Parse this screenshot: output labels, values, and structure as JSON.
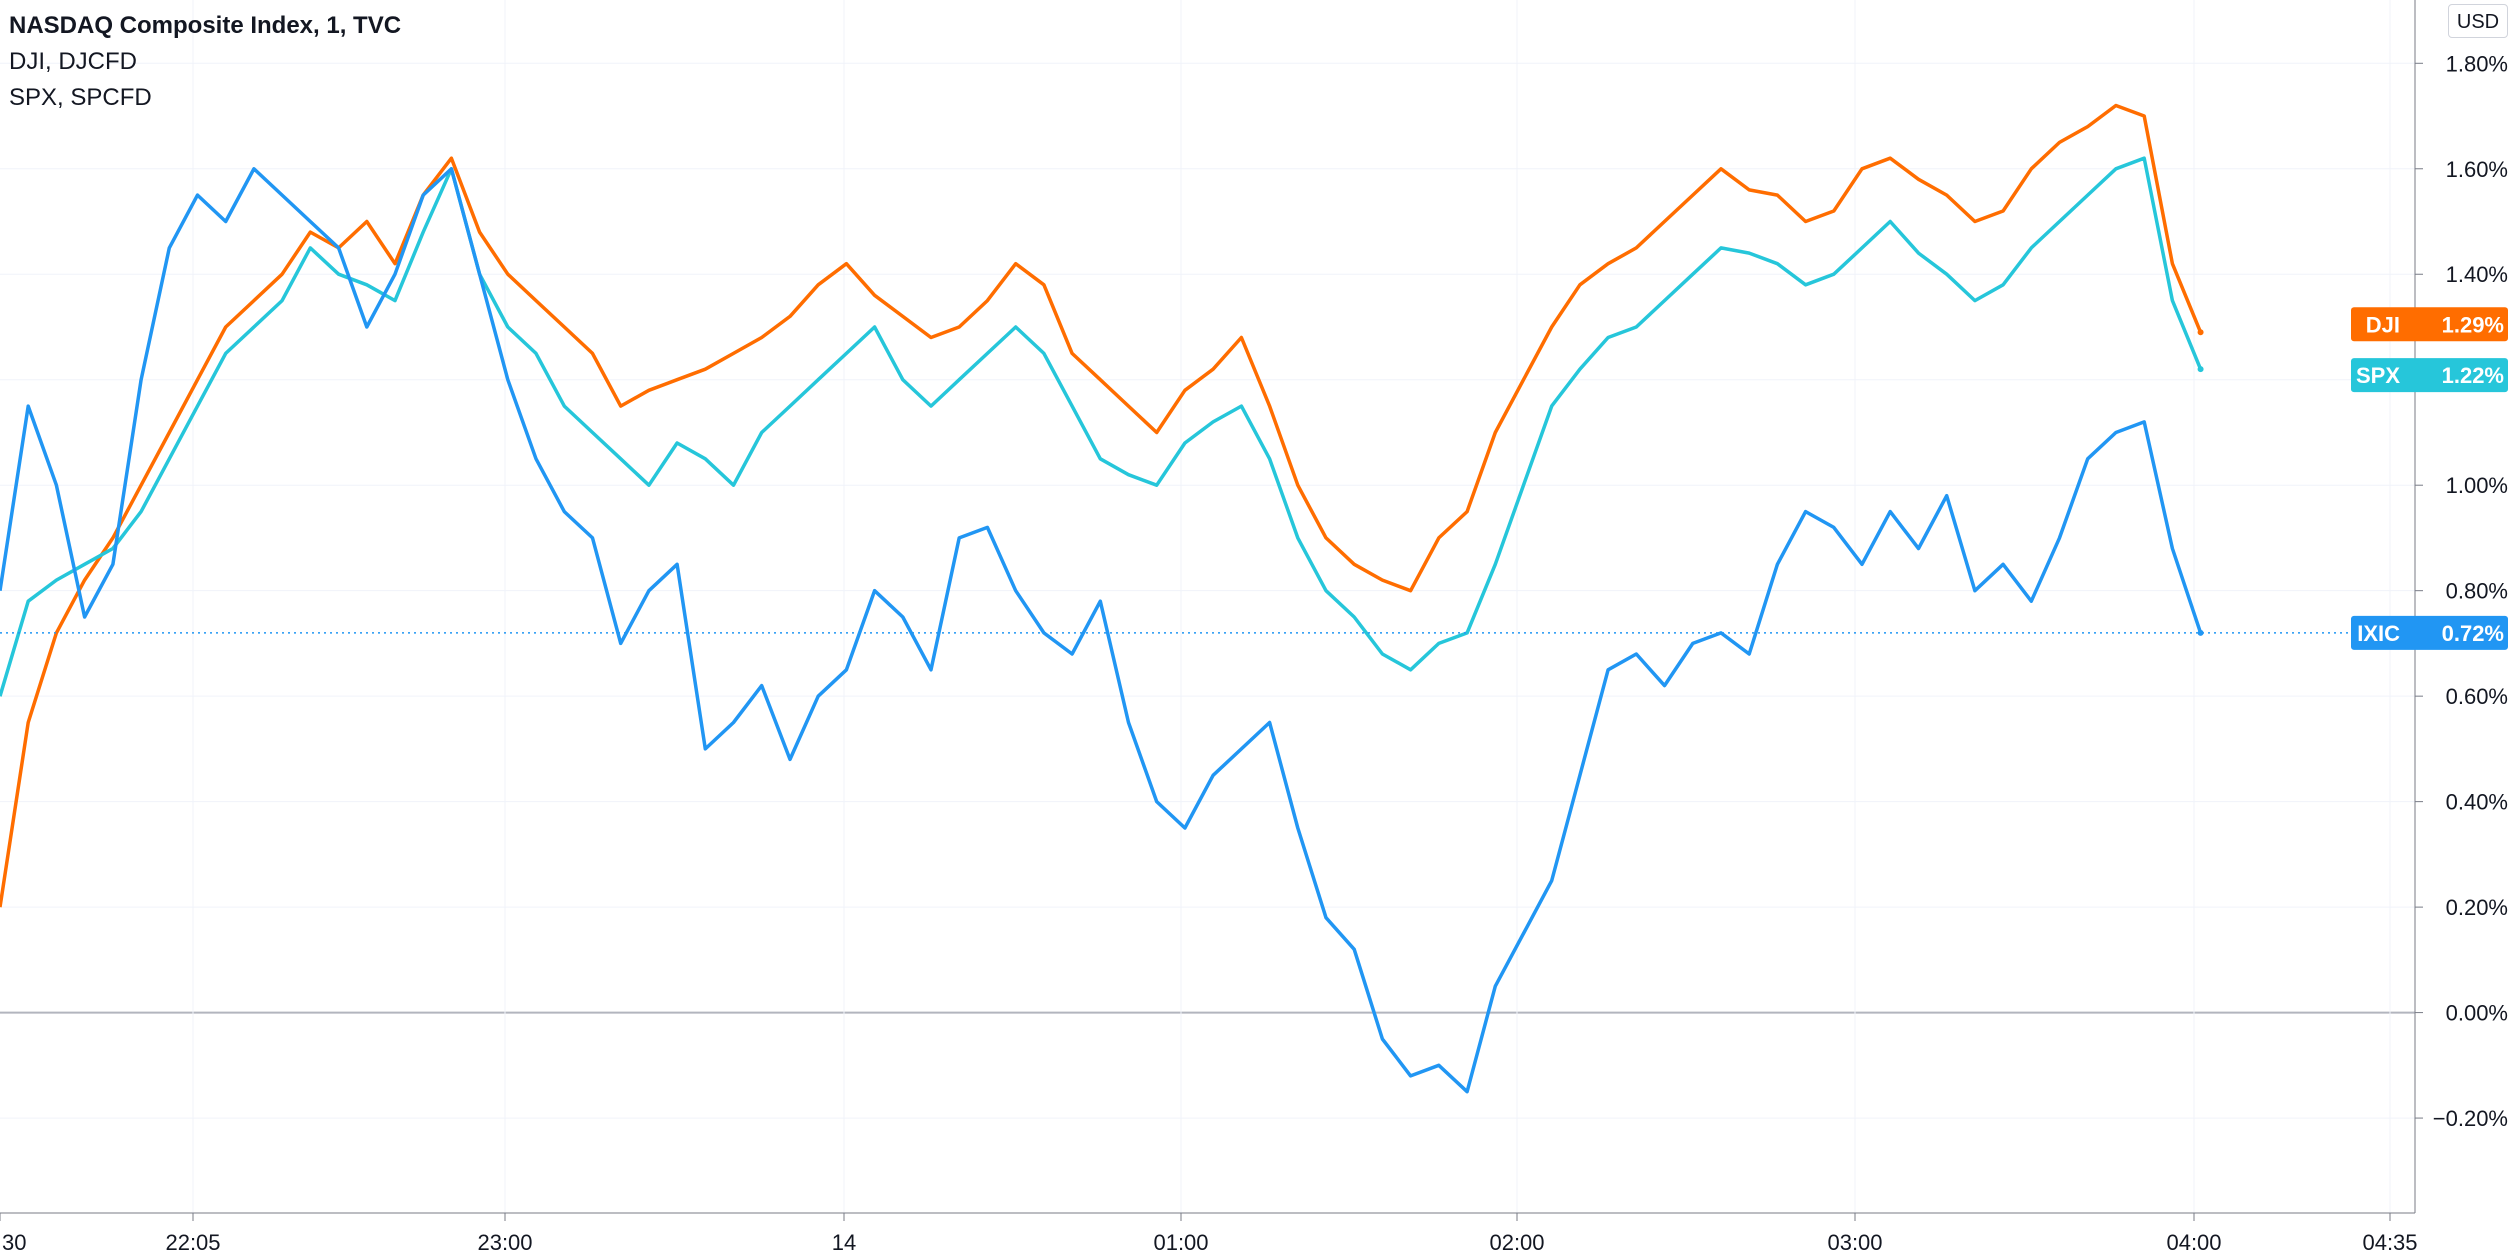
{
  "legend": {
    "main": "NASDAQ Composite Index, 1, TVC",
    "compare1": "DJI, DJCFD",
    "compare2": "SPX, SPCFD"
  },
  "currency_label": "USD",
  "colors": {
    "ixic": "#2196f3",
    "dji": "#ff6d00",
    "spx": "#26c6da",
    "grid": "#f0f3fa",
    "axis": "#787b86",
    "zero": "#b2b5be"
  },
  "chart_data": {
    "type": "line",
    "title": "",
    "xlabel": "",
    "ylabel": "",
    "ylim": [
      -0.38,
      1.92
    ],
    "xlim": [
      "21:30",
      "04:38"
    ],
    "x_ticks": [
      "30",
      "22:05",
      "23:00",
      "14",
      "01:00",
      "02:00",
      "03:00",
      "04:00",
      "04:35"
    ],
    "y_ticks": [
      1.8,
      1.6,
      1.4,
      1.2,
      1.0,
      0.8,
      0.6,
      0.4,
      0.2,
      0.0,
      -0.2
    ],
    "y_tick_labels": [
      "1.80%",
      "1.60%",
      "1.40%",
      "1.20%",
      "1.00%",
      "0.80%",
      "0.60%",
      "0.40%",
      "0.20%",
      "0.00%",
      "−0.20%"
    ],
    "grid": true,
    "series": [
      {
        "name": "IXIC",
        "last_label": "0.72%",
        "x": [
          "21:30",
          "21:35",
          "21:40",
          "21:45",
          "21:50",
          "21:55",
          "22:00",
          "22:05",
          "22:10",
          "22:15",
          "22:20",
          "22:25",
          "22:30",
          "22:35",
          "22:40",
          "22:45",
          "22:50",
          "22:55",
          "23:00",
          "23:05",
          "23:10",
          "23:15",
          "23:20",
          "23:25",
          "23:30",
          "23:35",
          "23:40",
          "23:45",
          "23:50",
          "23:55",
          "00:00",
          "00:05",
          "00:10",
          "00:15",
          "00:20",
          "00:25",
          "00:30",
          "00:35",
          "00:40",
          "00:45",
          "00:50",
          "00:55",
          "01:00",
          "01:05",
          "01:10",
          "01:15",
          "01:20",
          "01:25",
          "01:30",
          "01:35",
          "01:40",
          "01:45",
          "01:50",
          "01:55",
          "02:00",
          "02:05",
          "02:10",
          "02:15",
          "02:20",
          "02:25",
          "02:30",
          "02:35",
          "02:40",
          "02:45",
          "02:50",
          "02:55",
          "03:00",
          "03:05",
          "03:10",
          "03:15",
          "03:20",
          "03:25",
          "03:30",
          "03:35",
          "03:40",
          "03:45",
          "03:50",
          "03:55",
          "04:00"
        ],
        "values": [
          0.8,
          1.15,
          1.0,
          0.75,
          0.85,
          1.2,
          1.45,
          1.55,
          1.5,
          1.6,
          1.55,
          1.5,
          1.45,
          1.3,
          1.4,
          1.55,
          1.6,
          1.4,
          1.2,
          1.05,
          0.95,
          0.9,
          0.7,
          0.8,
          0.85,
          0.5,
          0.55,
          0.62,
          0.48,
          0.6,
          0.65,
          0.8,
          0.75,
          0.65,
          0.9,
          0.92,
          0.8,
          0.72,
          0.68,
          0.78,
          0.55,
          0.4,
          0.35,
          0.45,
          0.5,
          0.55,
          0.35,
          0.18,
          0.12,
          -0.05,
          -0.12,
          -0.1,
          -0.15,
          0.05,
          0.15,
          0.25,
          0.45,
          0.65,
          0.68,
          0.62,
          0.7,
          0.72,
          0.68,
          0.85,
          0.95,
          0.92,
          0.85,
          0.95,
          0.88,
          0.98,
          0.8,
          0.85,
          0.78,
          0.9,
          1.05,
          1.1,
          1.12,
          0.88,
          0.72
        ]
      },
      {
        "name": "DJI",
        "last_label": "1.29%",
        "x": [
          "21:30",
          "21:35",
          "21:40",
          "21:45",
          "21:50",
          "21:55",
          "22:00",
          "22:05",
          "22:10",
          "22:15",
          "22:20",
          "22:25",
          "22:30",
          "22:35",
          "22:40",
          "22:45",
          "22:50",
          "22:55",
          "23:00",
          "23:05",
          "23:10",
          "23:15",
          "23:20",
          "23:25",
          "23:30",
          "23:35",
          "23:40",
          "23:45",
          "23:50",
          "23:55",
          "00:00",
          "00:05",
          "00:10",
          "00:15",
          "00:20",
          "00:25",
          "00:30",
          "00:35",
          "00:40",
          "00:45",
          "00:50",
          "00:55",
          "01:00",
          "01:05",
          "01:10",
          "01:15",
          "01:20",
          "01:25",
          "01:30",
          "01:35",
          "01:40",
          "01:45",
          "01:50",
          "01:55",
          "02:00",
          "02:05",
          "02:10",
          "02:15",
          "02:20",
          "02:25",
          "02:30",
          "02:35",
          "02:40",
          "02:45",
          "02:50",
          "02:55",
          "03:00",
          "03:05",
          "03:10",
          "03:15",
          "03:20",
          "03:25",
          "03:30",
          "03:35",
          "03:40",
          "03:45",
          "03:50",
          "03:55",
          "04:00"
        ],
        "values": [
          0.2,
          0.55,
          0.72,
          0.82,
          0.9,
          1.0,
          1.1,
          1.2,
          1.3,
          1.35,
          1.4,
          1.48,
          1.45,
          1.5,
          1.42,
          1.55,
          1.62,
          1.48,
          1.4,
          1.35,
          1.3,
          1.25,
          1.15,
          1.18,
          1.2,
          1.22,
          1.25,
          1.28,
          1.32,
          1.38,
          1.42,
          1.36,
          1.32,
          1.28,
          1.3,
          1.35,
          1.42,
          1.38,
          1.25,
          1.2,
          1.15,
          1.1,
          1.18,
          1.22,
          1.28,
          1.15,
          1.0,
          0.9,
          0.85,
          0.82,
          0.8,
          0.9,
          0.95,
          1.1,
          1.2,
          1.3,
          1.38,
          1.42,
          1.45,
          1.5,
          1.55,
          1.6,
          1.56,
          1.55,
          1.5,
          1.52,
          1.6,
          1.62,
          1.58,
          1.55,
          1.5,
          1.52,
          1.6,
          1.65,
          1.68,
          1.72,
          1.7,
          1.42,
          1.29
        ]
      },
      {
        "name": "SPX",
        "last_label": "1.22%",
        "x": [
          "21:30",
          "21:35",
          "21:40",
          "21:45",
          "21:50",
          "21:55",
          "22:00",
          "22:05",
          "22:10",
          "22:15",
          "22:20",
          "22:25",
          "22:30",
          "22:35",
          "22:40",
          "22:45",
          "22:50",
          "22:55",
          "23:00",
          "23:05",
          "23:10",
          "23:15",
          "23:20",
          "23:25",
          "23:30",
          "23:35",
          "23:40",
          "23:45",
          "23:50",
          "23:55",
          "00:00",
          "00:05",
          "00:10",
          "00:15",
          "00:20",
          "00:25",
          "00:30",
          "00:35",
          "00:40",
          "00:45",
          "00:50",
          "00:55",
          "01:00",
          "01:05",
          "01:10",
          "01:15",
          "01:20",
          "01:25",
          "01:30",
          "01:35",
          "01:40",
          "01:45",
          "01:50",
          "01:55",
          "02:00",
          "02:05",
          "02:10",
          "02:15",
          "02:20",
          "02:25",
          "02:30",
          "02:35",
          "02:40",
          "02:45",
          "02:50",
          "02:55",
          "03:00",
          "03:05",
          "03:10",
          "03:15",
          "03:20",
          "03:25",
          "03:30",
          "03:35",
          "03:40",
          "03:45",
          "03:50",
          "03:55",
          "04:00"
        ],
        "values": [
          0.6,
          0.78,
          0.82,
          0.85,
          0.88,
          0.95,
          1.05,
          1.15,
          1.25,
          1.3,
          1.35,
          1.45,
          1.4,
          1.38,
          1.35,
          1.48,
          1.6,
          1.4,
          1.3,
          1.25,
          1.15,
          1.1,
          1.05,
          1.0,
          1.08,
          1.05,
          1.0,
          1.1,
          1.15,
          1.2,
          1.25,
          1.3,
          1.2,
          1.15,
          1.2,
          1.25,
          1.3,
          1.25,
          1.15,
          1.05,
          1.02,
          1.0,
          1.08,
          1.12,
          1.15,
          1.05,
          0.9,
          0.8,
          0.75,
          0.68,
          0.65,
          0.7,
          0.72,
          0.85,
          1.0,
          1.15,
          1.22,
          1.28,
          1.3,
          1.35,
          1.4,
          1.45,
          1.44,
          1.42,
          1.38,
          1.4,
          1.45,
          1.5,
          1.44,
          1.4,
          1.35,
          1.38,
          1.45,
          1.5,
          1.55,
          1.6,
          1.62,
          1.35,
          1.22
        ]
      }
    ]
  }
}
